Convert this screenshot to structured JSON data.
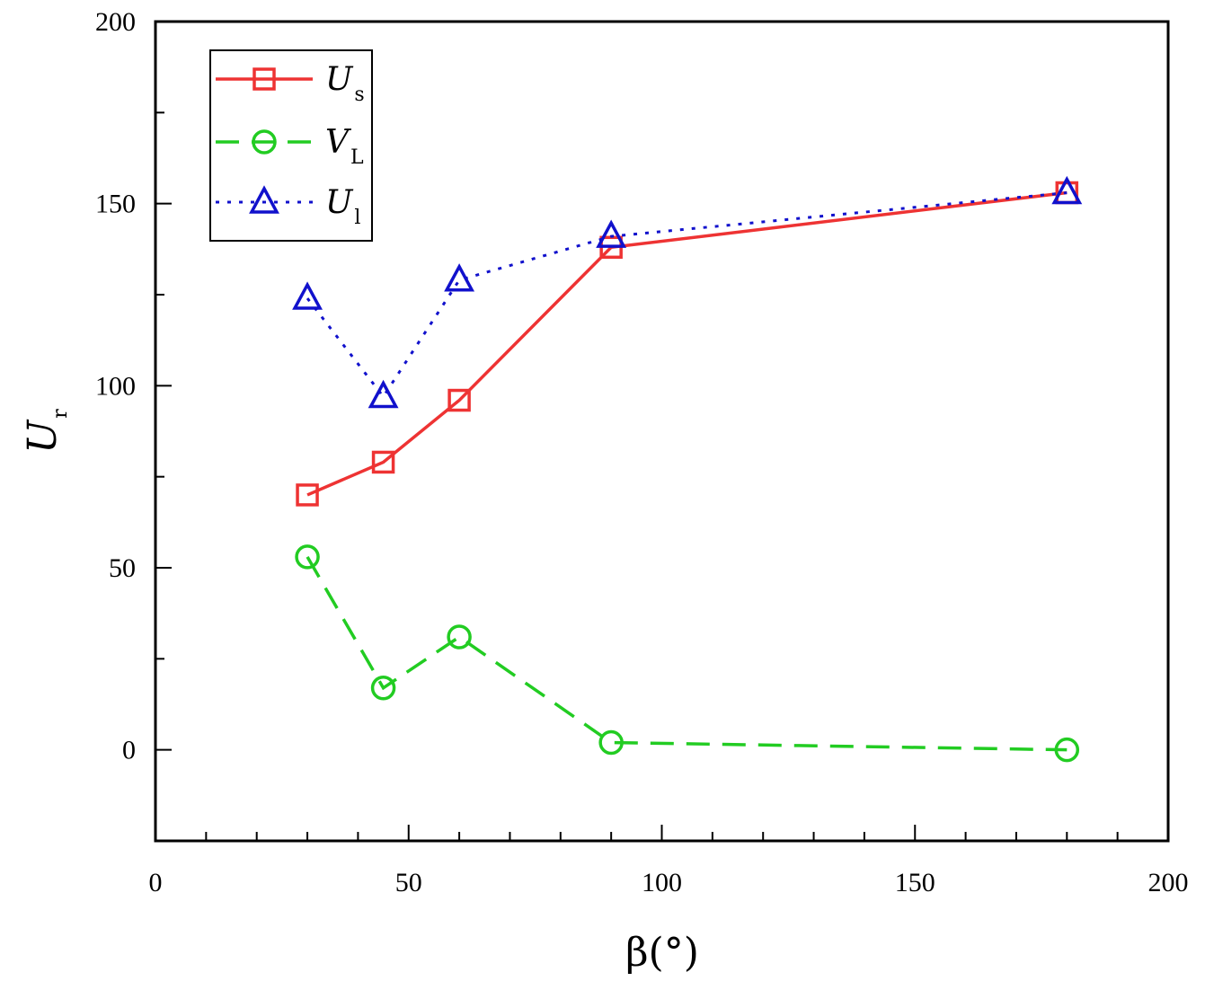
{
  "chart_data": {
    "type": "line",
    "xlabel": "β(°)",
    "ylabel": "U",
    "ylabel_sub": "r",
    "xlim": [
      0,
      200
    ],
    "ylim": [
      -25,
      200
    ],
    "xticks": [
      0,
      50,
      100,
      150,
      200
    ],
    "yticks": [
      0,
      50,
      100,
      150,
      200
    ],
    "grid": false,
    "legend_position": "top-left",
    "series": [
      {
        "name": "U",
        "name_sub": "s",
        "color": "#ee3333",
        "marker": "square",
        "line": "solid",
        "x": [
          30,
          45,
          60,
          90,
          180
        ],
        "y": [
          70,
          79,
          96,
          138,
          153
        ]
      },
      {
        "name": "V",
        "name_sub": "L",
        "color": "#22cc22",
        "marker": "circle",
        "line": "dashed",
        "x": [
          30,
          45,
          60,
          90,
          180
        ],
        "y": [
          53,
          17,
          31,
          2,
          0
        ]
      },
      {
        "name": "U",
        "name_sub": "l",
        "color": "#1111cc",
        "marker": "triangle",
        "line": "dotted",
        "x": [
          30,
          45,
          60,
          90,
          180
        ],
        "y": [
          124,
          97,
          129,
          141,
          153
        ]
      }
    ]
  }
}
